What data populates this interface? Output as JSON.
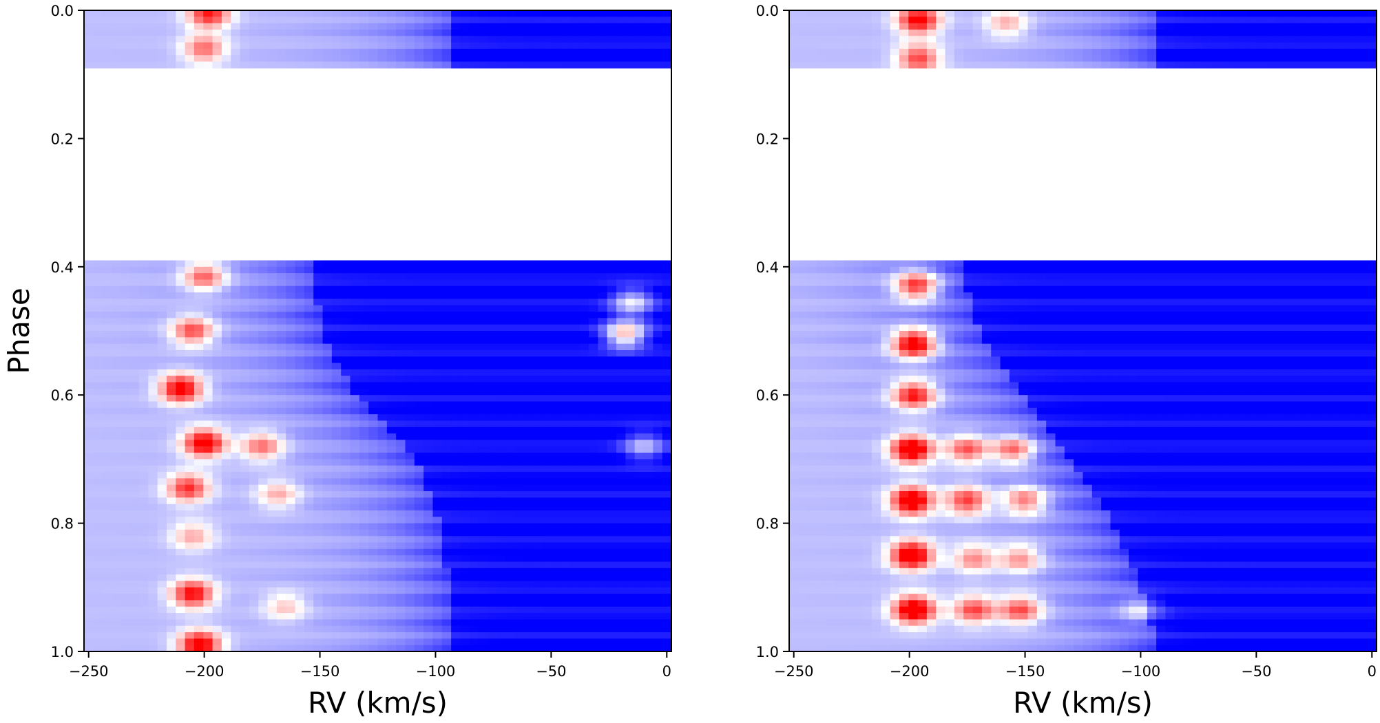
{
  "figure": {
    "background": "#ffffff"
  },
  "chart_data": [
    {
      "type": "heatmap",
      "title": "",
      "xlabel": "RV (km/s)",
      "ylabel": "Phase",
      "xlim": [
        -252,
        2
      ],
      "ylim": [
        1.0,
        0.0
      ],
      "xticks": [
        -250,
        -200,
        -150,
        -100,
        -50,
        0
      ],
      "xtick_labels": [
        "−250",
        "−200",
        "−150",
        "−100",
        "−50",
        "0"
      ],
      "yticks": [
        0.0,
        0.2,
        0.4,
        0.6,
        0.8,
        1.0
      ],
      "ytick_labels": [
        "0.0",
        "0.2",
        "0.4",
        "0.6",
        "0.8",
        "1.0"
      ],
      "colormap": {
        "low": "#0000ff",
        "mid": "#ffffff",
        "high": "#ff0000"
      },
      "no_data_phase_range": [
        0.09,
        0.39
      ],
      "blue_boundary": [
        {
          "phase": 0.0,
          "rv": -92
        },
        {
          "phase": 0.09,
          "rv": -92
        },
        {
          "phase": 0.39,
          "rv": -152
        },
        {
          "phase": 0.5,
          "rv": -150
        },
        {
          "phase": 0.6,
          "rv": -135
        },
        {
          "phase": 0.7,
          "rv": -108
        },
        {
          "phase": 0.8,
          "rv": -98
        },
        {
          "phase": 0.9,
          "rv": -94
        },
        {
          "phase": 1.0,
          "rv": -92
        }
      ],
      "emission_features": [
        {
          "rv": -198,
          "phase": 0.005,
          "intensity": 0.7
        },
        {
          "rv": -200,
          "phase": 0.06,
          "intensity": 0.5
        },
        {
          "rv": -200,
          "phase": 0.415,
          "intensity": 0.55
        },
        {
          "rv": -205,
          "phase": 0.5,
          "intensity": 0.6
        },
        {
          "rv": -210,
          "phase": 0.59,
          "intensity": 0.85
        },
        {
          "rv": -200,
          "phase": 0.675,
          "intensity": 0.85
        },
        {
          "rv": -175,
          "phase": 0.68,
          "intensity": 0.5
        },
        {
          "rv": -18,
          "phase": 0.505,
          "intensity": 0.75
        },
        {
          "rv": -15,
          "phase": 0.455,
          "intensity": 0.5
        },
        {
          "rv": -10,
          "phase": 0.68,
          "intensity": 0.4
        },
        {
          "rv": -207,
          "phase": 0.745,
          "intensity": 0.65
        },
        {
          "rv": -168,
          "phase": 0.755,
          "intensity": 0.35
        },
        {
          "rv": -205,
          "phase": 0.82,
          "intensity": 0.35
        },
        {
          "rv": -205,
          "phase": 0.91,
          "intensity": 0.75
        },
        {
          "rv": -202,
          "phase": 0.99,
          "intensity": 0.85
        },
        {
          "rv": -165,
          "phase": 0.93,
          "intensity": 0.3
        }
      ]
    },
    {
      "type": "heatmap",
      "title": "",
      "xlabel": "RV (km/s)",
      "ylabel": "",
      "xlim": [
        -252,
        2
      ],
      "ylim": [
        1.0,
        0.0
      ],
      "xticks": [
        -250,
        -200,
        -150,
        -100,
        -50,
        0
      ],
      "xtick_labels": [
        "−250",
        "−200",
        "−150",
        "−100",
        "−50",
        "0"
      ],
      "yticks": [
        0.0,
        0.2,
        0.4,
        0.6,
        0.8,
        1.0
      ],
      "ytick_labels": [
        "0.0",
        "0.2",
        "0.4",
        "0.6",
        "0.8",
        "1.0"
      ],
      "colormap": {
        "low": "#0000ff",
        "mid": "#ffffff",
        "high": "#ff0000"
      },
      "no_data_phase_range": [
        0.09,
        0.39
      ],
      "blue_boundary": [
        {
          "phase": 0.0,
          "rv": -92
        },
        {
          "phase": 0.09,
          "rv": -92
        },
        {
          "phase": 0.39,
          "rv": -178
        },
        {
          "phase": 0.5,
          "rv": -170
        },
        {
          "phase": 0.6,
          "rv": -150
        },
        {
          "phase": 0.7,
          "rv": -130
        },
        {
          "phase": 0.8,
          "rv": -112
        },
        {
          "phase": 0.9,
          "rv": -100
        },
        {
          "phase": 1.0,
          "rv": -92
        }
      ],
      "emission_features": [
        {
          "rv": -196,
          "phase": 0.015,
          "intensity": 0.8
        },
        {
          "rv": -196,
          "phase": 0.075,
          "intensity": 0.6
        },
        {
          "rv": -197,
          "phase": 0.43,
          "intensity": 0.75
        },
        {
          "rv": -198,
          "phase": 0.52,
          "intensity": 0.95
        },
        {
          "rv": -198,
          "phase": 0.6,
          "intensity": 0.75
        },
        {
          "rv": -199,
          "phase": 0.685,
          "intensity": 0.95
        },
        {
          "rv": -199,
          "phase": 0.765,
          "intensity": 0.95
        },
        {
          "rv": -199,
          "phase": 0.85,
          "intensity": 0.95
        },
        {
          "rv": -198,
          "phase": 0.935,
          "intensity": 0.95
        },
        {
          "rv": -175,
          "phase": 0.685,
          "intensity": 0.6
        },
        {
          "rv": -155,
          "phase": 0.685,
          "intensity": 0.6
        },
        {
          "rv": -175,
          "phase": 0.765,
          "intensity": 0.65
        },
        {
          "rv": -150,
          "phase": 0.765,
          "intensity": 0.55
        },
        {
          "rv": -172,
          "phase": 0.855,
          "intensity": 0.45
        },
        {
          "rv": -152,
          "phase": 0.855,
          "intensity": 0.45
        },
        {
          "rv": -172,
          "phase": 0.935,
          "intensity": 0.6
        },
        {
          "rv": -152,
          "phase": 0.935,
          "intensity": 0.6
        },
        {
          "rv": -158,
          "phase": 0.02,
          "intensity": 0.35
        },
        {
          "rv": -100,
          "phase": 0.935,
          "intensity": 0.3
        }
      ]
    }
  ]
}
